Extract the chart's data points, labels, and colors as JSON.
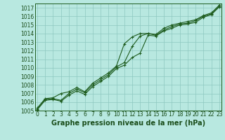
{
  "title": "Graphe pression niveau de la mer (hPa)",
  "background_color": "#b8e8e0",
  "grid_color": "#8ec8c0",
  "line_color": "#1e5c1e",
  "x_values": [
    0,
    1,
    2,
    3,
    4,
    5,
    6,
    7,
    8,
    9,
    10,
    11,
    12,
    13,
    14,
    15,
    16,
    17,
    18,
    19,
    20,
    21,
    22,
    23
  ],
  "y_mean": [
    1005.2,
    1006.3,
    1006.4,
    1006.2,
    1007.0,
    1007.5,
    1007.1,
    1008.0,
    1008.6,
    1009.2,
    1010.1,
    1010.6,
    1012.5,
    1013.7,
    1014.0,
    1013.8,
    1014.4,
    1014.8,
    1015.1,
    1015.2,
    1015.5,
    1016.0,
    1016.3,
    1017.2
  ],
  "y_max": [
    1005.3,
    1006.4,
    1006.5,
    1007.0,
    1007.2,
    1007.7,
    1007.2,
    1008.2,
    1008.8,
    1009.4,
    1010.2,
    1012.8,
    1013.6,
    1014.0,
    1014.0,
    1013.9,
    1014.6,
    1015.0,
    1015.2,
    1015.4,
    1015.6,
    1016.1,
    1016.4,
    1017.3
  ],
  "y_min": [
    1005.1,
    1006.2,
    1006.3,
    1006.1,
    1006.8,
    1007.3,
    1006.9,
    1007.8,
    1008.4,
    1009.0,
    1009.9,
    1010.3,
    1011.2,
    1011.7,
    1013.8,
    1013.7,
    1014.3,
    1014.6,
    1015.0,
    1015.1,
    1015.3,
    1015.9,
    1016.2,
    1017.1
  ],
  "ylim": [
    1005,
    1017.5
  ],
  "yticks": [
    1005,
    1006,
    1007,
    1008,
    1009,
    1010,
    1011,
    1012,
    1013,
    1014,
    1015,
    1016,
    1017
  ],
  "xlim": [
    -0.3,
    23.3
  ],
  "xticks": [
    0,
    1,
    2,
    3,
    4,
    5,
    6,
    7,
    8,
    9,
    10,
    11,
    12,
    13,
    14,
    15,
    16,
    17,
    18,
    19,
    20,
    21,
    22,
    23
  ],
  "title_fontsize": 7,
  "tick_fontsize": 5.5,
  "title_color": "#1a4d1a",
  "tick_color": "#1a4d1a",
  "ylabel_right": false
}
